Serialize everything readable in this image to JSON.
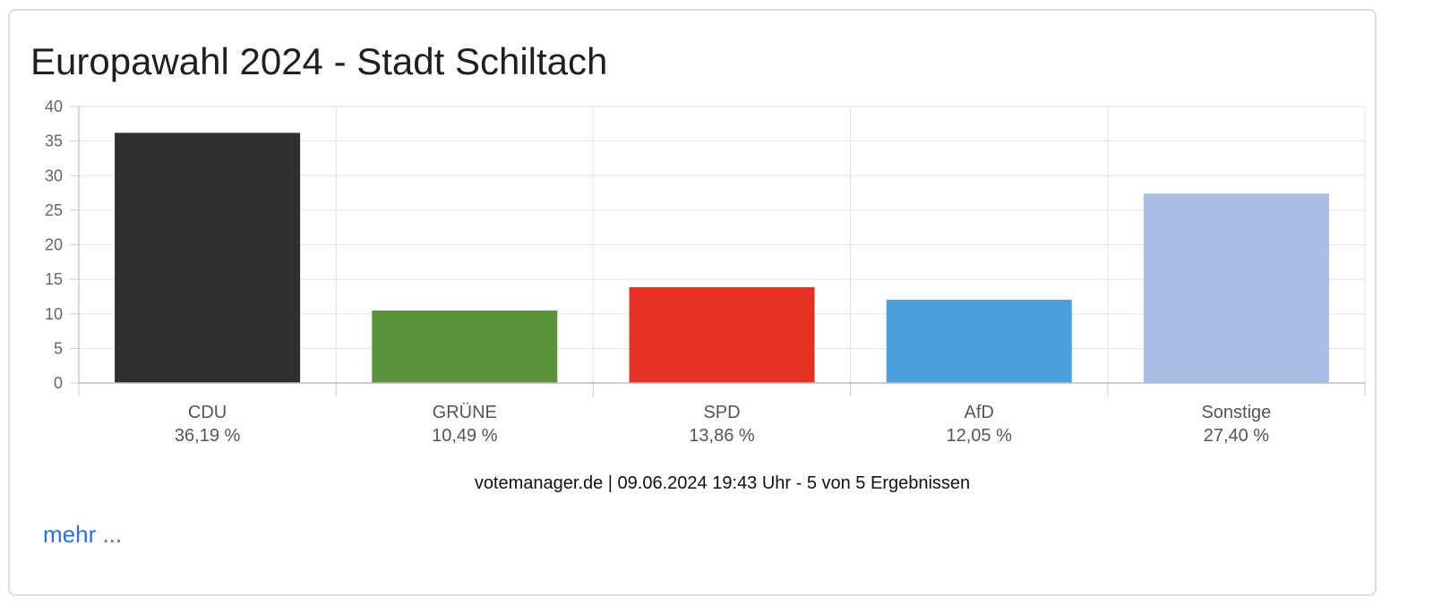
{
  "chart_data": {
    "type": "bar",
    "title": "Europawahl 2024 - Stadt Schiltach",
    "categories": [
      "CDU",
      "GRÜNE",
      "SPD",
      "AfD",
      "Sonstige"
    ],
    "value_labels": [
      "36,19 %",
      "10,49 %",
      "13,86 %",
      "12,05 %",
      "27,40 %"
    ],
    "values": [
      36.19,
      10.49,
      13.86,
      12.05,
      27.4
    ],
    "colors": [
      "#2f2f2f",
      "#5b923b",
      "#e63223",
      "#4a9fdc",
      "#aabde3"
    ],
    "ylim": [
      0,
      40
    ],
    "yticks": [
      0,
      5,
      10,
      15,
      20,
      25,
      30,
      35,
      40
    ],
    "grid": true,
    "xlabel": "",
    "ylabel": ""
  },
  "footer": {
    "text": "votemanager.de | 09.06.2024 19:43 Uhr - 5 von 5 Ergebnissen"
  },
  "more_link": {
    "label": "mehr ..."
  }
}
